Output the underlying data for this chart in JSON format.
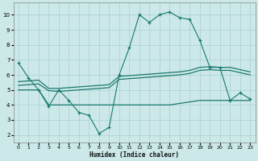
{
  "xlabel": "Humidex (Indice chaleur)",
  "xlim": [
    -0.5,
    23.5
  ],
  "ylim": [
    1.5,
    10.8
  ],
  "xticks": [
    0,
    1,
    2,
    3,
    4,
    5,
    6,
    7,
    8,
    9,
    10,
    11,
    12,
    13,
    14,
    15,
    16,
    17,
    18,
    19,
    20,
    21,
    22,
    23
  ],
  "yticks": [
    2,
    3,
    4,
    5,
    6,
    7,
    8,
    9,
    10
  ],
  "bg_color": "#cce8e8",
  "line_color": "#1a7a6e",
  "grid_color": "#afd4d4",
  "line1_x": [
    0,
    1,
    2,
    3,
    4,
    5,
    6,
    7,
    8,
    9,
    10,
    11,
    12,
    13,
    14,
    15,
    16,
    17,
    18,
    19,
    20,
    21,
    22,
    23
  ],
  "line1_y": [
    6.8,
    5.8,
    5.0,
    3.9,
    5.0,
    4.3,
    3.5,
    3.3,
    2.1,
    2.5,
    6.0,
    7.8,
    10.0,
    9.5,
    10.0,
    10.2,
    9.8,
    9.7,
    8.3,
    6.5,
    6.5,
    4.3,
    4.8,
    4.4
  ],
  "line2_x": [
    0,
    1,
    2,
    3,
    4,
    5,
    6,
    7,
    8,
    9,
    10,
    11,
    12,
    13,
    14,
    15,
    16,
    17,
    18,
    19,
    20,
    21,
    22,
    23
  ],
  "line2_y": [
    5.55,
    5.6,
    5.65,
    5.1,
    5.1,
    5.15,
    5.2,
    5.25,
    5.3,
    5.35,
    5.9,
    5.95,
    6.0,
    6.05,
    6.1,
    6.15,
    6.2,
    6.3,
    6.5,
    6.55,
    6.5,
    6.5,
    6.35,
    6.2
  ],
  "line3_x": [
    0,
    1,
    2,
    3,
    4,
    5,
    6,
    7,
    8,
    9,
    10,
    11,
    12,
    13,
    14,
    15,
    16,
    17,
    18,
    19,
    20,
    21,
    22,
    23
  ],
  "line3_y": [
    5.3,
    5.35,
    5.4,
    4.95,
    4.9,
    4.95,
    5.0,
    5.05,
    5.1,
    5.15,
    5.7,
    5.75,
    5.8,
    5.85,
    5.9,
    5.95,
    6.0,
    6.1,
    6.3,
    6.35,
    6.3,
    6.3,
    6.15,
    6.0
  ],
  "line4_x": [
    0,
    1,
    2,
    3,
    4,
    5,
    6,
    7,
    8,
    9,
    10,
    11,
    12,
    13,
    14,
    15,
    16,
    17,
    18,
    19,
    20,
    21,
    22,
    23
  ],
  "line4_y": [
    5.0,
    5.0,
    5.0,
    4.0,
    4.0,
    4.0,
    4.0,
    4.0,
    4.0,
    4.0,
    4.0,
    4.0,
    4.0,
    4.0,
    4.0,
    4.0,
    4.1,
    4.2,
    4.3,
    4.3,
    4.3,
    4.3,
    4.3,
    4.3
  ]
}
